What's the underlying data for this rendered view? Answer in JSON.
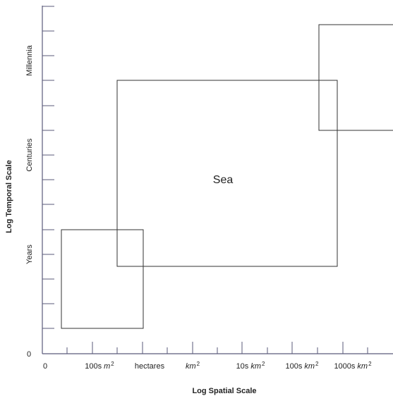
{
  "axes": {
    "x_title": "Log Spatial Scale",
    "y_title": "Log Temporal Scale",
    "origin_x_label": "0",
    "origin_y_label": "0",
    "x_ticks": [
      {
        "number": "100s",
        "unit": "m",
        "sup": "2"
      },
      {
        "number": "hectares",
        "unit": "",
        "sup": ""
      },
      {
        "number": "",
        "unit": "km",
        "sup": "2"
      },
      {
        "number": "10s",
        "unit": "km",
        "sup": "2"
      },
      {
        "number": "100s",
        "unit": "km",
        "sup": "2"
      },
      {
        "number": "1000s",
        "unit": "km",
        "sup": "2"
      }
    ],
    "y_ticks": [
      "Years",
      "Centuries",
      "Millennia"
    ]
  },
  "regions": [
    {
      "label": ""
    },
    {
      "label": "Sea"
    },
    {
      "label": ""
    }
  ],
  "colors": {
    "axis": "#5a5a7a",
    "box": "#333333",
    "text": "#222222"
  }
}
